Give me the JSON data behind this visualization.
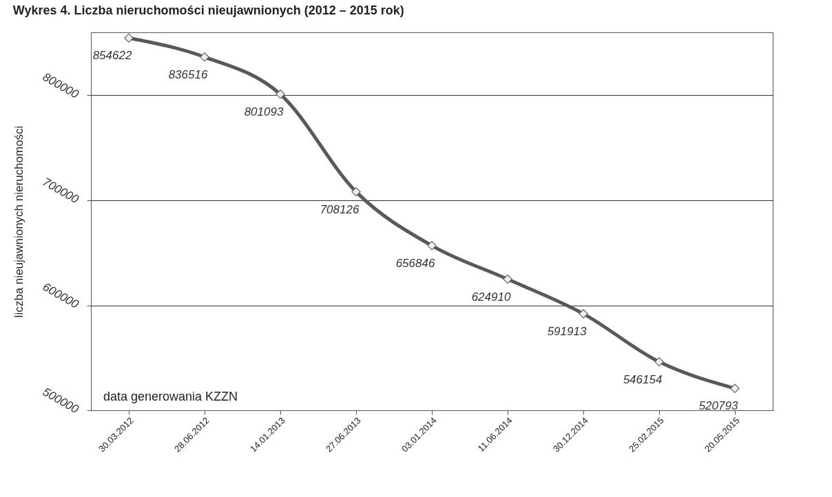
{
  "chart_data": {
    "type": "line",
    "title": "Wykres 4. Liczba nieruchomości nieujawnionych (2012 – 2015 rok)",
    "ylabel": "liczba nieujawnionych nieruchomości",
    "categories": [
      "30.03.2012",
      "28.06.2012",
      "14.01.2013",
      "27.06.2013",
      "03.01.2014",
      "11.06.2014",
      "30.12.2014",
      "25.02.2015",
      "20.05.2015"
    ],
    "series": [
      {
        "color": "#595959",
        "values": [
          854622,
          836516,
          801093,
          708126,
          656846,
          624910,
          591913,
          546154,
          520793
        ]
      }
    ],
    "ylim": [
      500000,
      860000
    ],
    "yticks": [
      500000,
      600000,
      700000,
      800000
    ],
    "grid": "y",
    "marker": "diamond",
    "data_labels": true,
    "annotations": [
      "data generowania KZZN"
    ]
  }
}
